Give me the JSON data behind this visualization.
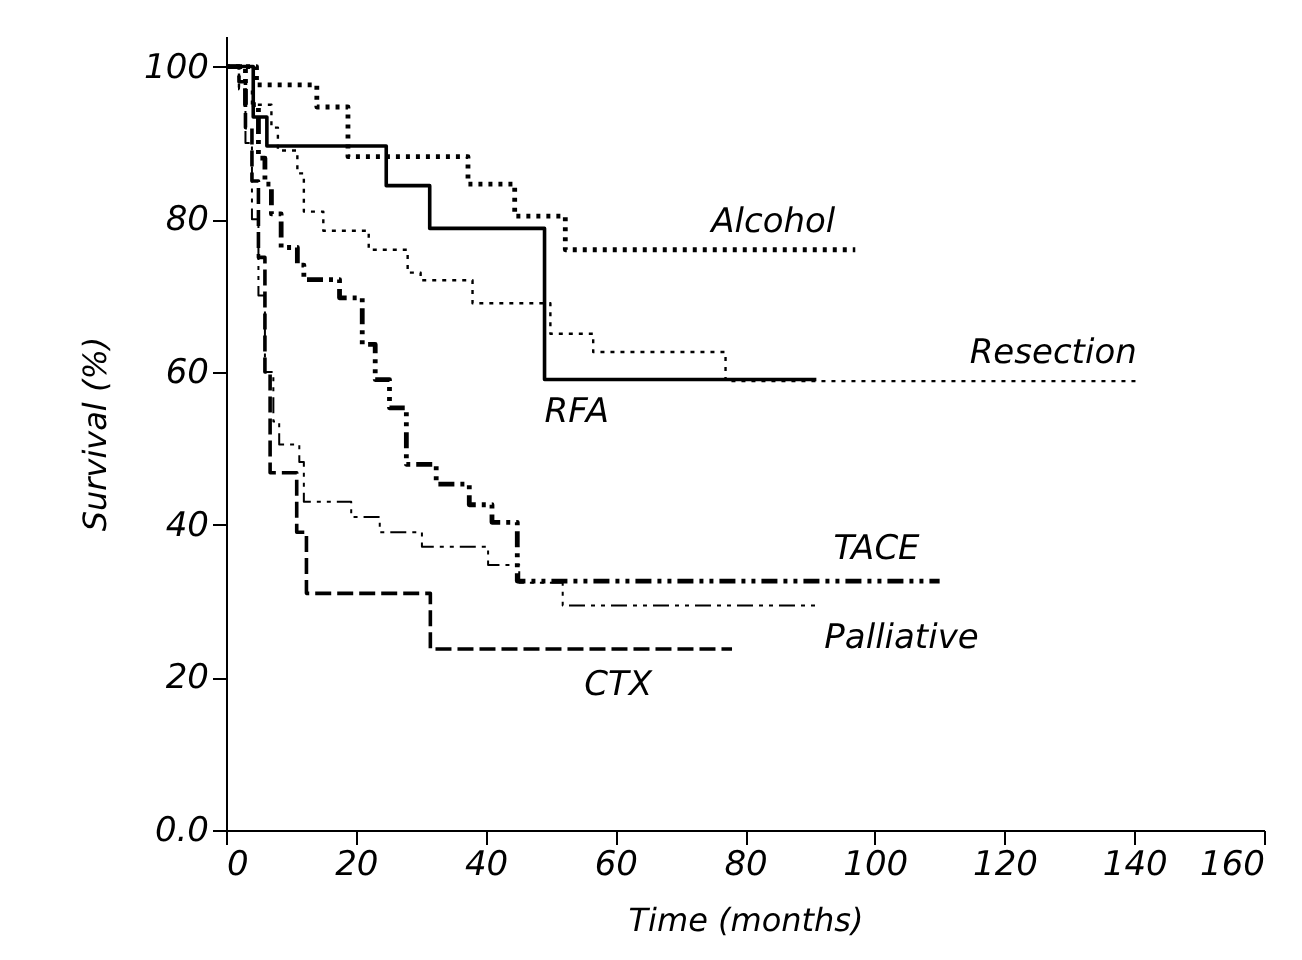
{
  "chart_data": {
    "type": "step",
    "xlabel": "Time (months)",
    "ylabel": "Survival (%)",
    "xlim": [
      0,
      160
    ],
    "ylim": [
      0,
      104
    ],
    "xticks": [
      0,
      20,
      40,
      60,
      80,
      100,
      120,
      140,
      160
    ],
    "yticks": [
      {
        "value": 0,
        "label": "0.0"
      },
      20,
      40,
      60,
      80,
      100
    ],
    "grid": false,
    "marker": "none",
    "series": [
      {
        "name": "Alcohol",
        "color": "#000000",
        "line_style": "dotted",
        "x": [
          0,
          4.7,
          14,
          18.8,
          37.3,
          44.5,
          52.3,
          97
        ],
        "values": [
          100,
          97.6,
          94.7,
          88.2,
          84.6,
          80.4,
          76,
          76
        ]
      },
      {
        "name": "Resection",
        "color": "#000000",
        "line_style": "dotted",
        "x": [
          0,
          2,
          4,
          7,
          8,
          11,
          12,
          15,
          22,
          28,
          30,
          38,
          50,
          56.6,
          77,
          141
        ],
        "values": [
          100,
          97,
          95,
          92,
          89,
          86,
          81,
          78.5,
          76,
          73,
          72,
          69,
          65,
          62.6,
          58.8,
          58.8
        ]
      },
      {
        "name": "RFA",
        "color": "#000000",
        "line_style": "solid",
        "x": [
          0,
          4.2,
          6.3,
          24.7,
          31.4,
          49.1,
          91
        ],
        "values": [
          100,
          93.4,
          89.6,
          84.4,
          78.8,
          59,
          59
        ]
      },
      {
        "name": "TACE",
        "color": "#000000",
        "line_style": "dashdot",
        "x": [
          0,
          3,
          5,
          6,
          7,
          8.5,
          11,
          12,
          17.5,
          21,
          23,
          25.2,
          27.8,
          32.4,
          37.5,
          41,
          44.9,
          110
        ],
        "values": [
          100,
          95,
          88,
          84.6,
          80.7,
          76.3,
          74,
          72.1,
          69.7,
          63.6,
          59,
          55.3,
          47.9,
          45.3,
          42.6,
          40.3,
          32.6,
          32.6
        ]
      },
      {
        "name": "Palliative",
        "color": "#000000",
        "line_style": "dashdot",
        "x": [
          0,
          2,
          3,
          4,
          5,
          6,
          7.3,
          8.2,
          11.3,
          12,
          19.3,
          23.7,
          30.2,
          40.4,
          45.2,
          51.9,
          91
        ],
        "values": [
          100,
          97,
          90,
          80,
          70,
          60,
          53.5,
          50.5,
          48.2,
          43,
          41,
          39,
          37.1,
          34.7,
          32.4,
          29.4,
          29.4
        ]
      },
      {
        "name": "CTX",
        "color": "#000000",
        "line_style": "dashed",
        "x": [
          0,
          2,
          3,
          4,
          5,
          6,
          6.8,
          10.9,
          12.4,
          31.5,
          78
        ],
        "values": [
          100,
          98,
          92,
          85,
          75,
          60,
          46.8,
          39,
          31,
          23.7,
          23.7
        ]
      }
    ]
  }
}
